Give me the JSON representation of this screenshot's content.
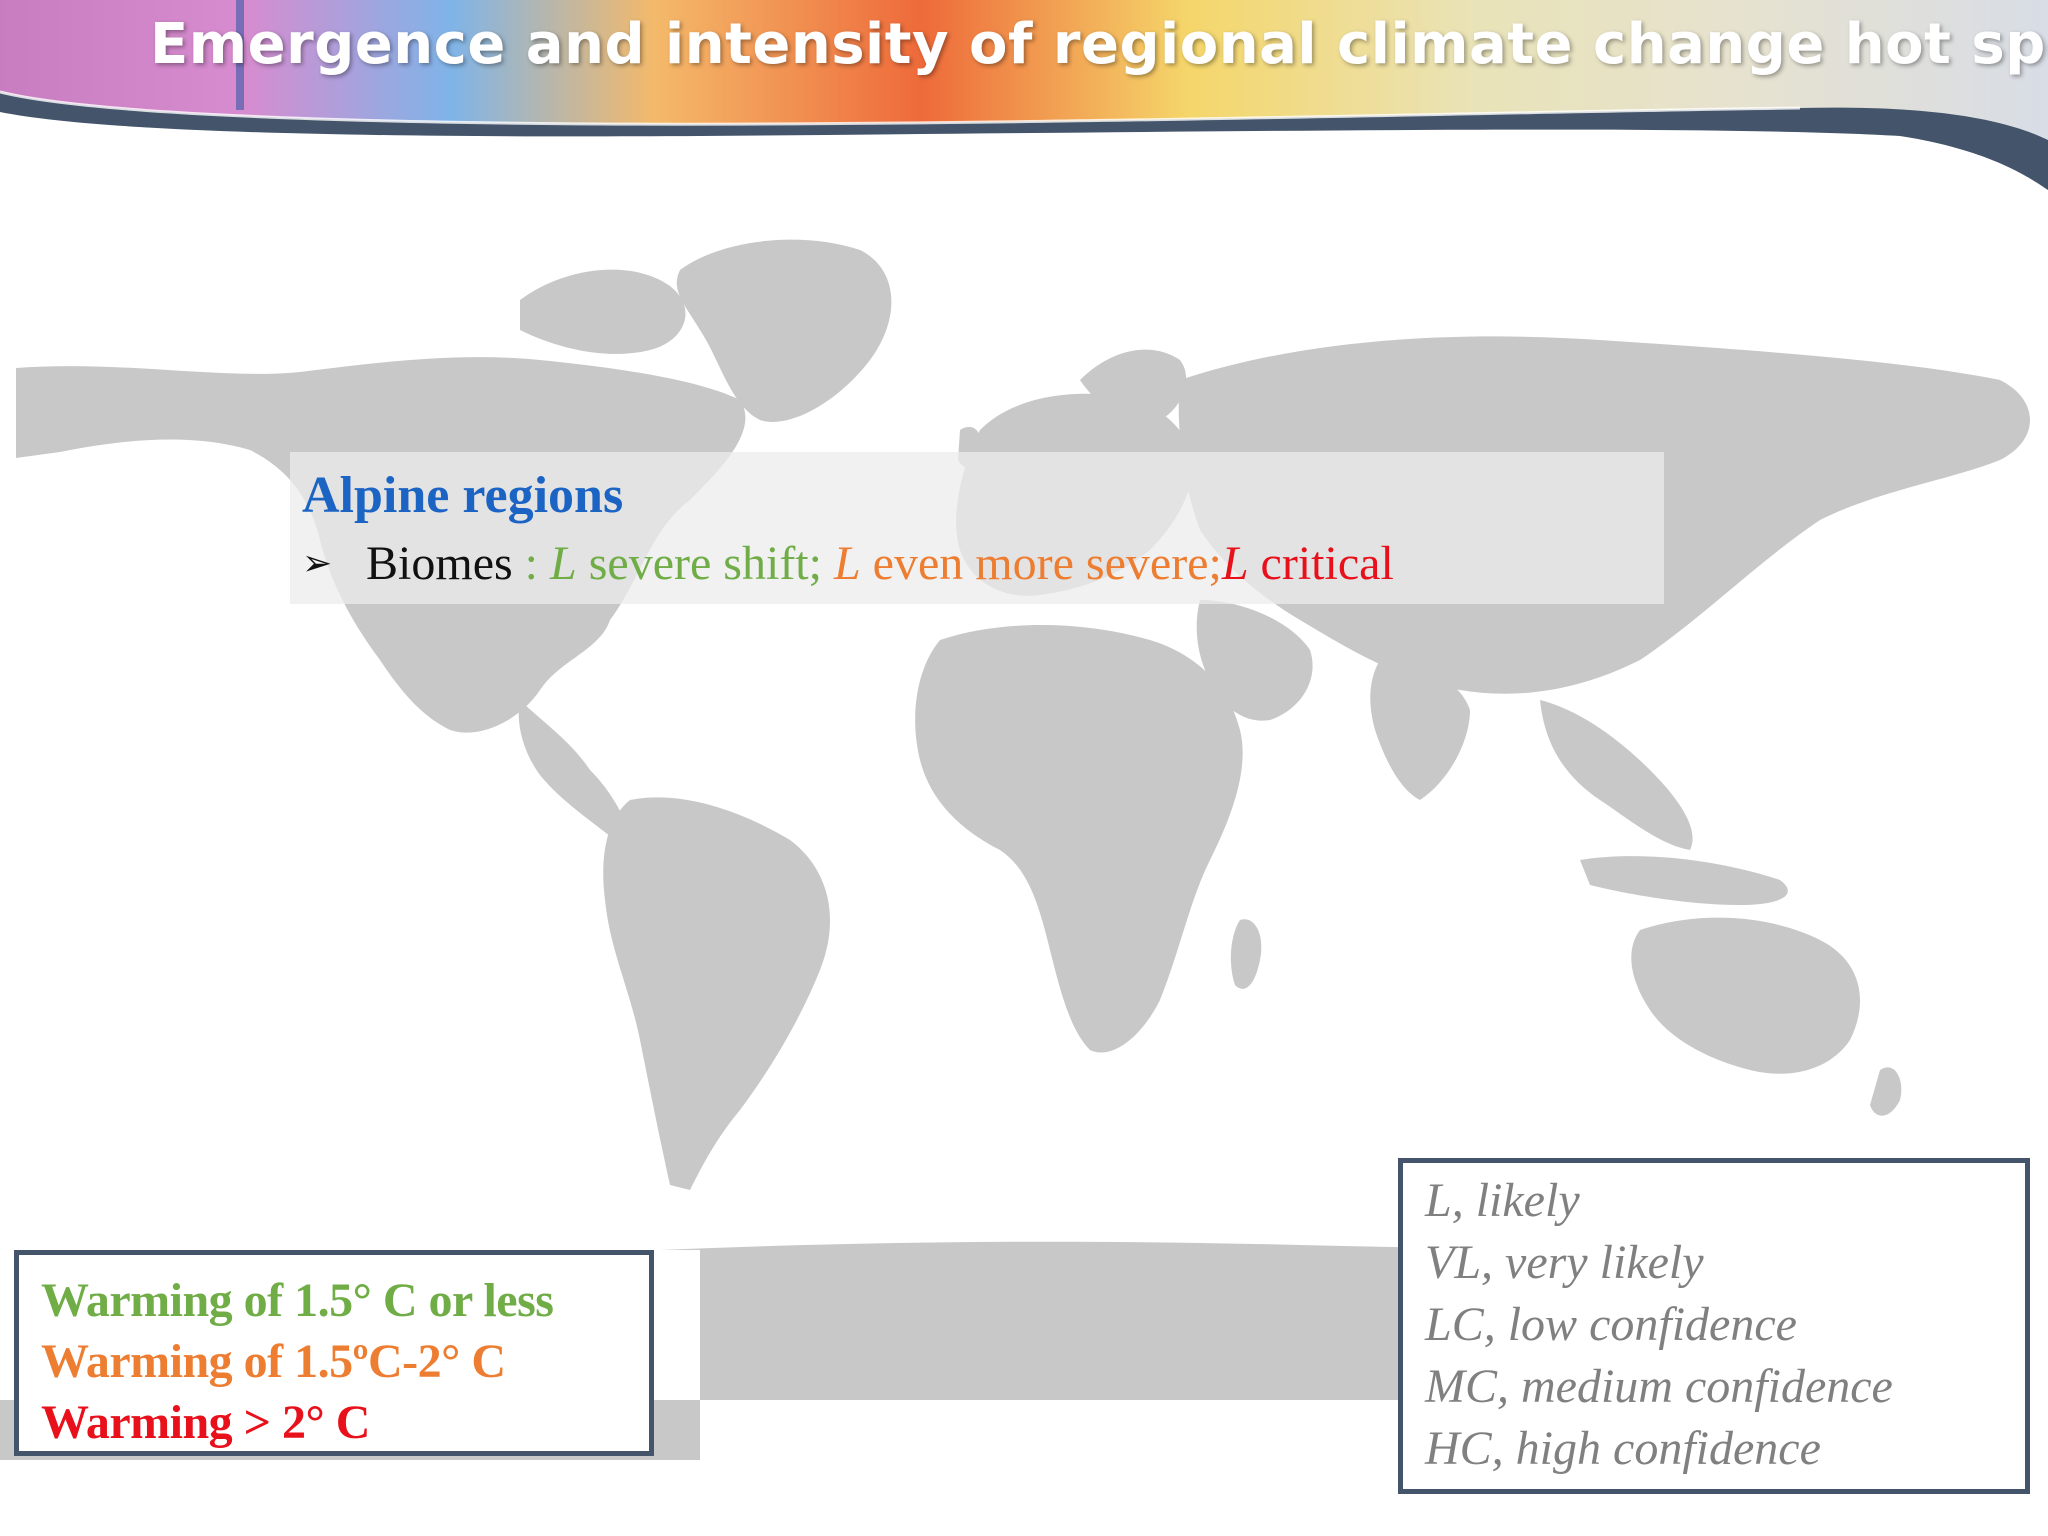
{
  "slide": {
    "title": "Emergence and intensity of regional climate change hot spots"
  },
  "map": {
    "land_color": "#c8c8c8",
    "ocean_color": "#ffffff"
  },
  "region": {
    "title": "Alpine regions",
    "bullet": {
      "label": "Biomes",
      "separator": " : ",
      "items": [
        {
          "code": "L",
          "text": " severe shift; ",
          "level": "1.5C-or-less",
          "color": "#70ad47"
        },
        {
          "code": "L",
          "text": " even more severe;",
          "level": "1.5C-2C",
          "color": "#ed7d31"
        },
        {
          "code": "L",
          "text": " critical",
          "level": "above-2C",
          "color": "#e8101a"
        }
      ]
    }
  },
  "warming_legend": {
    "items": [
      {
        "label": "Warming of 1.5° C or less",
        "color": "#70ad47"
      },
      {
        "label": "Warming of 1.5ºC-2° C",
        "color": "#ed7d31"
      },
      {
        "label": "Warming > 2° C",
        "color": "#e8101a"
      }
    ]
  },
  "confidence_legend": {
    "items": [
      "L, likely",
      "VL, very likely",
      "LC, low confidence",
      "MC, medium confidence",
      "HC, high confidence"
    ]
  }
}
